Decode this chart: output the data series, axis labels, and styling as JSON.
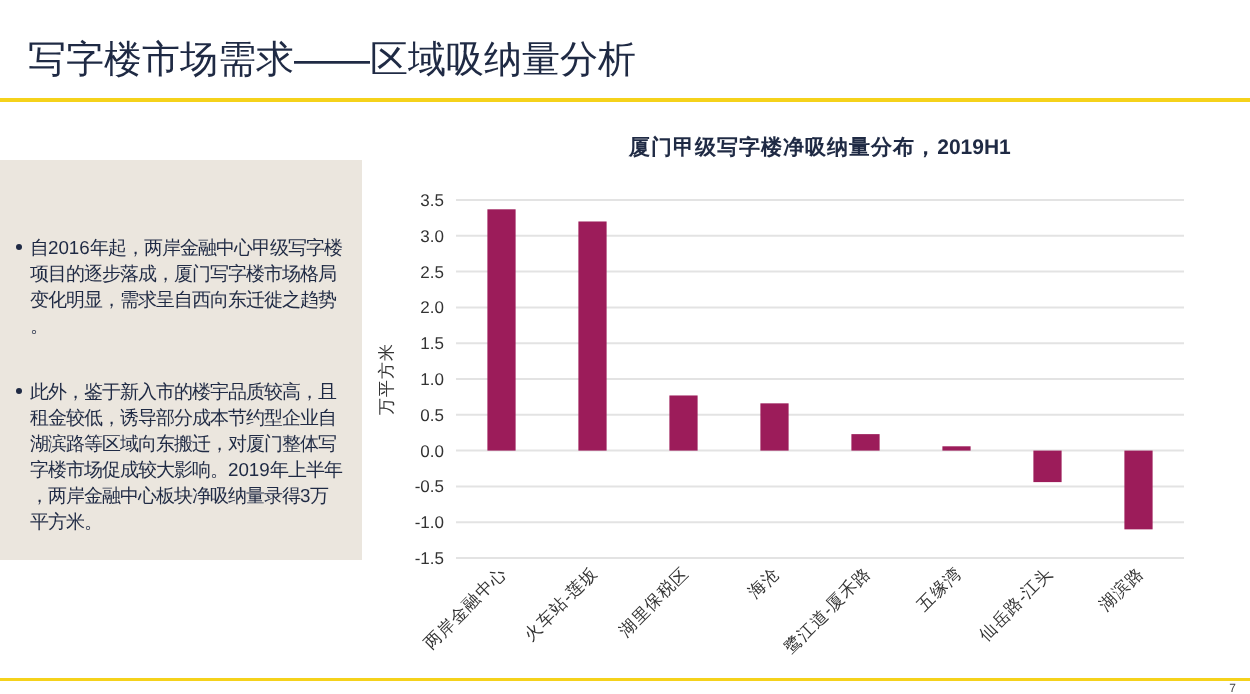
{
  "chart_data": {
    "type": "bar",
    "title": "写字楼市场需求——区域吸纳量分析",
    "subtitle": "厦门甲级写字楼净吸纳量分布，2019H1",
    "ylabel": "万平方米",
    "categories": [
      "两岸金融中心",
      "火车站-莲坂",
      "湖里保税区",
      "海沧",
      "鹭江道-厦禾路",
      "五缘湾",
      "仙岳路-江头",
      "湖滨路"
    ],
    "values": [
      3.37,
      3.2,
      0.77,
      0.66,
      0.23,
      0.06,
      -0.44,
      -1.1
    ],
    "color": "#9c1c5a",
    "ylim": [
      -1.5,
      3.5
    ],
    "yticks": [
      {
        "value": -1.5,
        "label": "-1.5"
      },
      {
        "value": -1,
        "label": "-1.0"
      },
      {
        "value": -0.5,
        "label": "-0.5"
      },
      {
        "value": 0,
        "label": "0.0"
      },
      {
        "value": 0.5,
        "label": "0.5"
      },
      {
        "value": 1,
        "label": "1.0"
      },
      {
        "value": 1.5,
        "label": "1.5"
      },
      {
        "value": 2,
        "label": "2.0"
      },
      {
        "value": 2.5,
        "label": "2.5"
      },
      {
        "value": 3,
        "label": "3.0"
      },
      {
        "value": 3.5,
        "label": "3.5"
      }
    ],
    "grid": "y",
    "annotations": [
      "自2016年起，两岸金融中心甲级写字楼项目的逐步落成，厦门写字楼市场格局变化明显，需求呈自西向东迁徙之趋势。",
      "此外，鉴于新入市的楼宇品质较高，且租金较低，诱导部分成本节约型企业自湖滨路等区域向东搬迁，对厦门整体写字楼市场促成较大影响。2019年上半年，两岸金融中心板块净吸纳量录得3万平方米。",
      "7"
    ]
  }
}
